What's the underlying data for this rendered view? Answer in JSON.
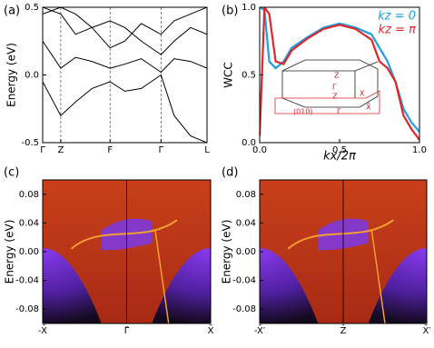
{
  "chart_data": [
    {
      "type": "line",
      "panel_label": "(a)",
      "ylabel": "Energy (eV)",
      "x": [
        0,
        0.11,
        0.2,
        0.3,
        0.41,
        0.5,
        0.6,
        0.72,
        0.8,
        0.9,
        1.0
      ],
      "xlim": [
        0,
        1
      ],
      "xticks": [
        {
          "value": 0,
          "label": "Γ"
        },
        {
          "value": 0.11,
          "label": "Z"
        },
        {
          "value": 0.41,
          "label": "F"
        },
        {
          "value": 0.72,
          "label": "Γ"
        },
        {
          "value": 1,
          "label": "L"
        }
      ],
      "xgrid": true,
      "ylim": [
        -0.5,
        0.5
      ],
      "yticks": [
        {
          "value": -0.5,
          "label": "-0.5"
        },
        {
          "value": 0,
          "label": "0.0"
        },
        {
          "value": 0.5,
          "label": "0.5"
        }
      ],
      "series": [
        {
          "color": "#000000",
          "values": [
            0.25,
            0.05,
            0.13,
            0.1,
            0.05,
            0.08,
            0.12,
            0.02,
            0.12,
            0.1,
            0.05
          ]
        },
        {
          "color": "#000000",
          "values": [
            0.45,
            0.5,
            0.45,
            0.35,
            0.2,
            0.25,
            0.38,
            0.3,
            0.4,
            0.45,
            0.5
          ]
        },
        {
          "color": "#000000",
          "values": [
            -0.05,
            -0.3,
            -0.2,
            -0.1,
            -0.05,
            -0.12,
            -0.1,
            0.0,
            -0.3,
            -0.45,
            -0.5
          ]
        },
        {
          "color": "#000000",
          "values": [
            0.5,
            0.45,
            0.3,
            0.35,
            0.4,
            0.35,
            0.25,
            0.15,
            0.25,
            0.35,
            0.3
          ]
        }
      ]
    },
    {
      "type": "line",
      "panel_label": "(b)",
      "ylabel": "WCC",
      "xlabel": "kx/2π",
      "x": [
        0,
        0.03,
        0.06,
        0.1,
        0.15,
        0.2,
        0.3,
        0.4,
        0.5,
        0.6,
        0.7,
        0.75,
        0.8,
        0.85,
        0.9,
        0.95,
        1.0
      ],
      "xlim": [
        0,
        1
      ],
      "xticks": [
        {
          "value": 0,
          "label": "0.0"
        },
        {
          "value": 0.5,
          "label": "0.5"
        },
        {
          "value": 1,
          "label": "1.0"
        }
      ],
      "ylim": [
        0,
        1
      ],
      "yticks": [
        {
          "value": 0,
          "label": "0.0"
        },
        {
          "value": 0.5,
          "label": "0.5"
        },
        {
          "value": 1,
          "label": "1.0"
        }
      ],
      "legend": "upper right",
      "series": [
        {
          "name": "kz = 0",
          "color": "#1ea0dc",
          "values": [
            1.0,
            0.98,
            0.6,
            0.55,
            0.6,
            0.7,
            0.78,
            0.85,
            0.88,
            0.85,
            0.8,
            0.7,
            0.6,
            0.45,
            0.25,
            0.15,
            0.08
          ]
        },
        {
          "name": "kz = π",
          "color": "#e0262a",
          "values": [
            0.05,
            1.0,
            0.95,
            0.6,
            0.58,
            0.68,
            0.77,
            0.84,
            0.87,
            0.84,
            0.76,
            0.6,
            0.55,
            0.45,
            0.2,
            0.1,
            0.02
          ]
        }
      ],
      "annotations": [
        "Z",
        "Γ",
        "Z",
        "X",
        "(010)",
        "Γ̄",
        "X̄"
      ]
    },
    {
      "type": "spectral",
      "panel_label": "(c)",
      "ylabel": "Energy (eV)",
      "xlim": [
        0,
        1
      ],
      "xticks": [
        {
          "value": 0,
          "label": "-X̄"
        },
        {
          "value": 0.5,
          "label": "Γ̄"
        },
        {
          "value": 1,
          "label": "X̄"
        }
      ],
      "ylim": [
        -0.1,
        0.1
      ],
      "yticks": [
        {
          "value": 0.08,
          "label": "0.08"
        },
        {
          "value": 0.04,
          "label": "0.04"
        },
        {
          "value": 0,
          "label": "0.00"
        },
        {
          "value": -0.04,
          "label": "-0.04"
        },
        {
          "value": -0.08,
          "label": "-0.08"
        }
      ]
    },
    {
      "type": "spectral",
      "panel_label": "(d)",
      "ylabel": "Energy (eV)",
      "xlim": [
        0,
        1
      ],
      "xticks": [
        {
          "value": 0,
          "label": "-X̄′"
        },
        {
          "value": 0.5,
          "label": "Z̄"
        },
        {
          "value": 1,
          "label": "X̄′"
        }
      ],
      "ylim": [
        -0.1,
        0.1
      ],
      "yticks": [
        {
          "value": 0.08,
          "label": "0.08"
        },
        {
          "value": 0.04,
          "label": "0.04"
        },
        {
          "value": 0,
          "label": "0.00"
        },
        {
          "value": -0.04,
          "label": "-0.04"
        },
        {
          "value": -0.08,
          "label": "-0.08"
        }
      ]
    }
  ]
}
